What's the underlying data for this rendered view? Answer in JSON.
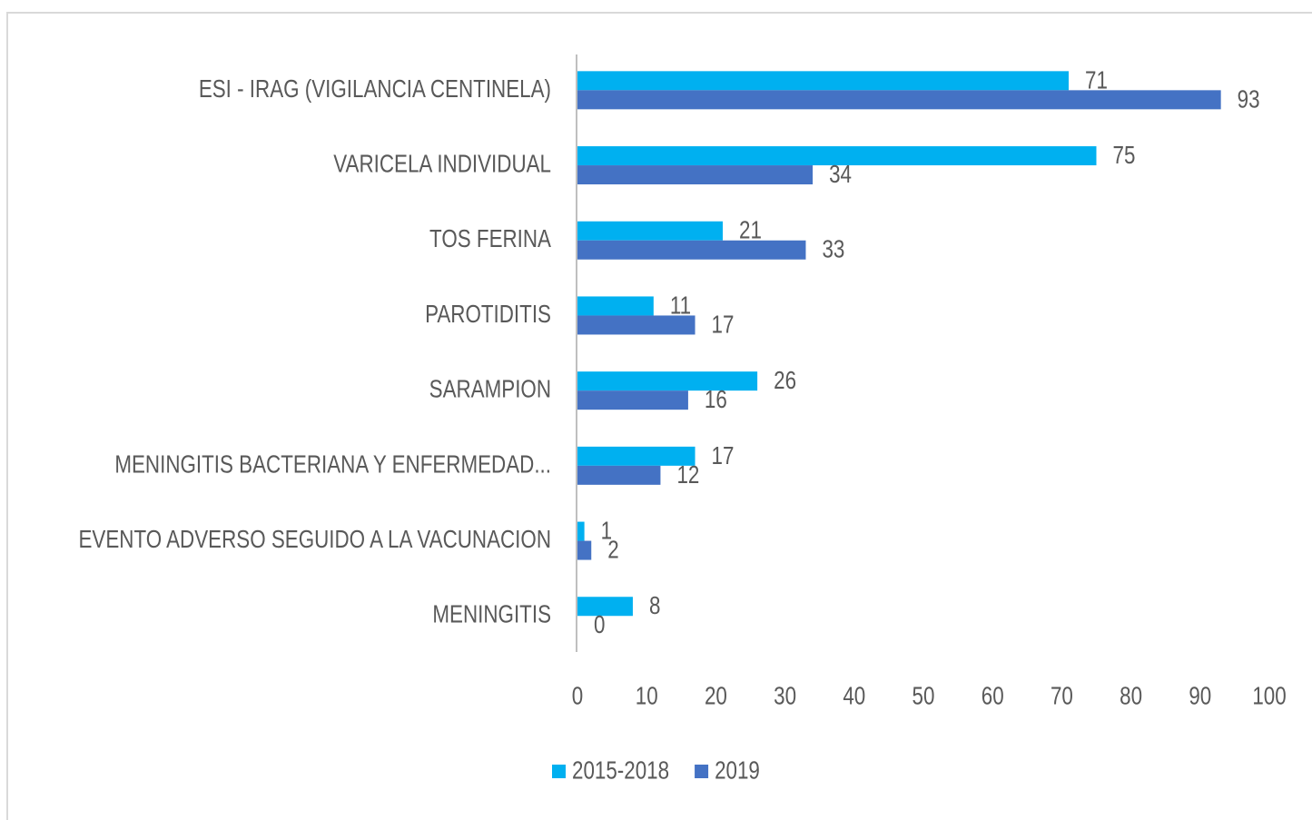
{
  "chart_data": {
    "type": "bar",
    "orientation": "horizontal",
    "categories": [
      "ESI - IRAG (VIGILANCIA CENTINELA)",
      "VARICELA INDIVIDUAL",
      "TOS FERINA",
      "PAROTIDITIS",
      "SARAMPION",
      "MENINGITIS BACTERIANA Y ENFERMEDAD...",
      "EVENTO ADVERSO SEGUIDO A LA VACUNACION",
      "MENINGITIS"
    ],
    "series": [
      {
        "name": "2015-2018",
        "color": "#00b0f0",
        "values": [
          71,
          75,
          21,
          11,
          26,
          17,
          1,
          8
        ]
      },
      {
        "name": "2019",
        "color": "#4472c4",
        "values": [
          93,
          34,
          33,
          17,
          16,
          12,
          2,
          0
        ]
      }
    ],
    "xlim": [
      0,
      100
    ],
    "xticks": [
      0,
      10,
      20,
      30,
      40,
      50,
      60,
      70,
      80,
      90,
      100
    ],
    "grid": false,
    "legend": "bottom"
  }
}
